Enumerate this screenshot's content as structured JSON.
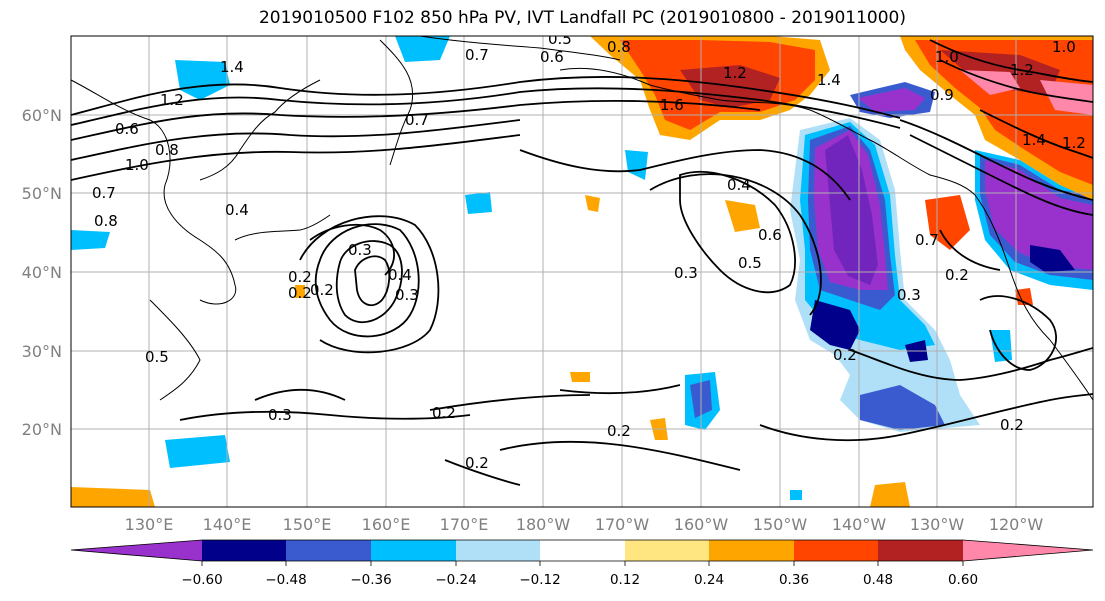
{
  "title": "2019010500 F102 850 hPa PV, IVT Landfall PC (2019010800 - 2019011000)",
  "lat_labels": [
    "60°N",
    "50°N",
    "40°N",
    "30°N",
    "20°N"
  ],
  "lon_labels": [
    "130°E",
    "140°E",
    "150°E",
    "160°E",
    "170°E",
    "180°W",
    "170°W",
    "160°W",
    "150°W",
    "140°W",
    "130°W",
    "120°W"
  ],
  "colorbar": {
    "ticks": [
      "−0.60",
      "−0.48",
      "−0.36",
      "−0.24",
      "−0.12",
      "0.12",
      "0.24",
      "0.36",
      "0.48",
      "0.60"
    ],
    "colors": [
      "#9932cc",
      "#00008b",
      "#3a5bcf",
      "#00bfff",
      "#b0e0f8",
      "#ffffff",
      "#ffe680",
      "#ffa500",
      "#ff4500",
      "#b22222",
      "#ff88aa"
    ]
  },
  "contour_labels": [
    "1.4",
    "1.2",
    "0.6",
    "1.0",
    "0.8",
    "0.7",
    "0.8",
    "0.4",
    "0.2",
    "0.3",
    "0.2",
    "0.2",
    "0.3",
    "0.4",
    "0.5",
    "0.2",
    "0.3",
    "0.2",
    "0.2",
    "0.2",
    "0.4",
    "0.6",
    "0.5",
    "0.3",
    "0.2",
    "0.3",
    "0.7",
    "0.2",
    "0.7",
    "0.6",
    "0.5",
    "0.8",
    "1.2",
    "1.0",
    "1.4",
    "1.2",
    "1.6",
    "0.9",
    "1.0",
    "1.2",
    "1.4",
    "0.7"
  ]
}
